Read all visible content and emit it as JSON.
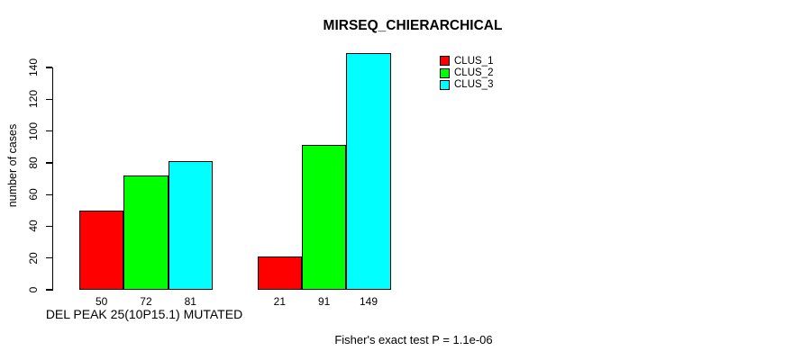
{
  "page": {
    "title": "MIRSEQ_CHIERARCHICAL",
    "background_color": "#ffffff",
    "text_color": "#000000"
  },
  "chart_data": {
    "type": "bar",
    "title": "MIRSEQ_CHIERARCHICAL",
    "ylabel": "number of cases",
    "xlabel": "DEL PEAK 25(10P15.1) MUTATED",
    "annotation": "Fisher's exact test P = 1.1e-06",
    "ylim": [
      0,
      140
    ],
    "yticks": [
      0,
      20,
      40,
      60,
      80,
      100,
      120,
      140
    ],
    "grid": false,
    "bar_border_color": "#000000",
    "series": [
      {
        "name": "CLUS_1",
        "color": "#ff0000",
        "values": [
          50,
          21
        ]
      },
      {
        "name": "CLUS_2",
        "color": "#00ff00",
        "values": [
          72,
          91
        ]
      },
      {
        "name": "CLUS_3",
        "color": "#00ffff",
        "values": [
          81,
          149
        ]
      }
    ],
    "groups": [
      {
        "bar_labels": [
          "50",
          "72",
          "81"
        ]
      },
      {
        "bar_labels": [
          "21",
          "91",
          "149"
        ]
      }
    ],
    "legend": {
      "position": "top-right",
      "entries": [
        {
          "label": "CLUS_1",
          "color": "#ff0000"
        },
        {
          "label": "CLUS_2",
          "color": "#00ff00"
        },
        {
          "label": "CLUS_3",
          "color": "#00ffff"
        }
      ]
    }
  }
}
